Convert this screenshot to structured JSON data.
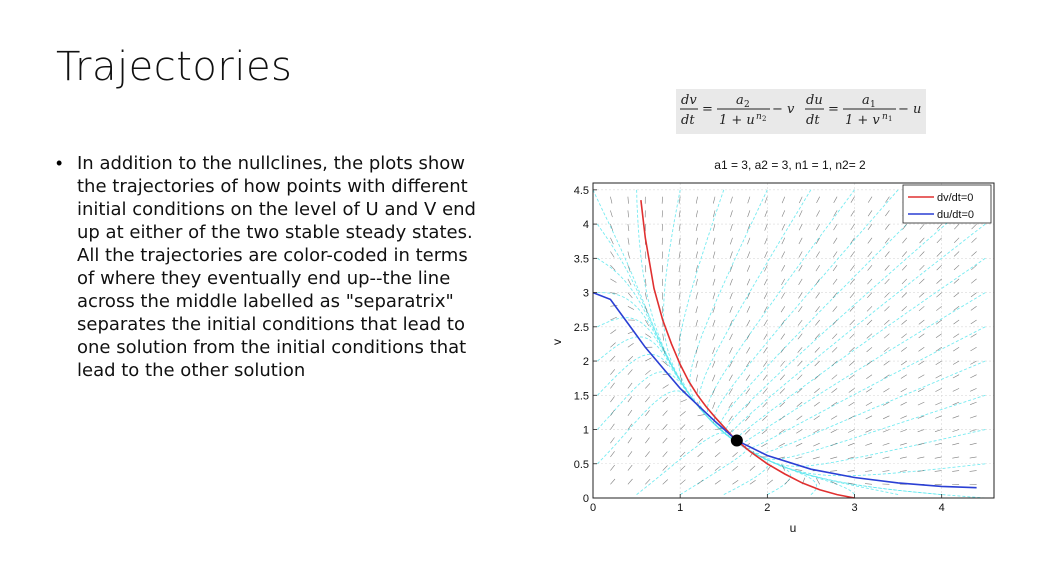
{
  "slide": {
    "title": "Trajectories",
    "bullet_lines": [
      "In addition to the nullclines, the plots show",
      "the trajectories of how points with different",
      "initial conditions on the level of U and V end",
      "up at either of the two stable steady states.",
      "All the trajectories are color-coded in terms",
      "of where they eventually end up--the line",
      "across the middle labelled as \"separatrix\"",
      "separates the initial conditions that lead to",
      "one solution from the initial conditions that",
      "lead to the other solution"
    ]
  },
  "formula": {
    "dv": "dv",
    "dt": "dt",
    "a2": "a",
    "a2_sub": "2",
    "den1": "1 + u",
    "den1_sup": "n",
    "den1_sup_sub": "2",
    "minus_v": "− v",
    "du": "du",
    "a1": "a",
    "a1_sub": "1",
    "den2": "1 + v",
    "den2_sup": "n",
    "den2_sup_sub": "1",
    "minus_u": "− u",
    "eq": "="
  },
  "chart_data": {
    "type": "line",
    "title": "a1 = 3, a2 = 3, n1 = 1, n2= 2",
    "xlabel": "u",
    "ylabel": "v",
    "xlim": [
      0,
      4.6
    ],
    "ylim": [
      0,
      4.6
    ],
    "xticks": [
      "0",
      "1",
      "2",
      "3",
      "4"
    ],
    "yticks": [
      "0",
      "0.5",
      "1",
      "1.5",
      "2",
      "2.5",
      "3",
      "3.5",
      "4",
      "4.5"
    ],
    "legend_position": "top-right",
    "series": [
      {
        "name": "dv/dt=0",
        "color": "#e03030",
        "x": [
          0.55,
          0.6,
          0.7,
          0.8,
          0.9,
          1.0,
          1.1,
          1.2,
          1.3,
          1.4,
          1.5,
          1.6,
          1.65,
          1.8,
          2.0,
          2.2,
          2.4,
          2.6,
          2.8,
          3.0
        ],
        "y": [
          4.35,
          3.8,
          3.06,
          2.6,
          2.25,
          1.95,
          1.7,
          1.5,
          1.33,
          1.18,
          1.04,
          0.9,
          0.84,
          0.68,
          0.5,
          0.35,
          0.22,
          0.12,
          0.05,
          0.0
        ]
      },
      {
        "name": "du/dt=0",
        "color": "#2a3fd4",
        "x": [
          0.0,
          0.2,
          0.4,
          0.6,
          0.8,
          1.0,
          1.2,
          1.4,
          1.65,
          2.0,
          2.5,
          3.0,
          3.5,
          4.0,
          4.4
        ],
        "y": [
          3.0,
          2.9,
          2.55,
          2.2,
          1.9,
          1.6,
          1.36,
          1.12,
          0.84,
          0.62,
          0.42,
          0.3,
          0.22,
          0.17,
          0.15
        ]
      }
    ],
    "steady_state": {
      "u": 1.65,
      "v": 0.84
    },
    "colors": {
      "trajectory": "#5ee8ee",
      "vector": "#555555",
      "grid": "#d9d9d9",
      "steady_state": "#000000"
    }
  }
}
